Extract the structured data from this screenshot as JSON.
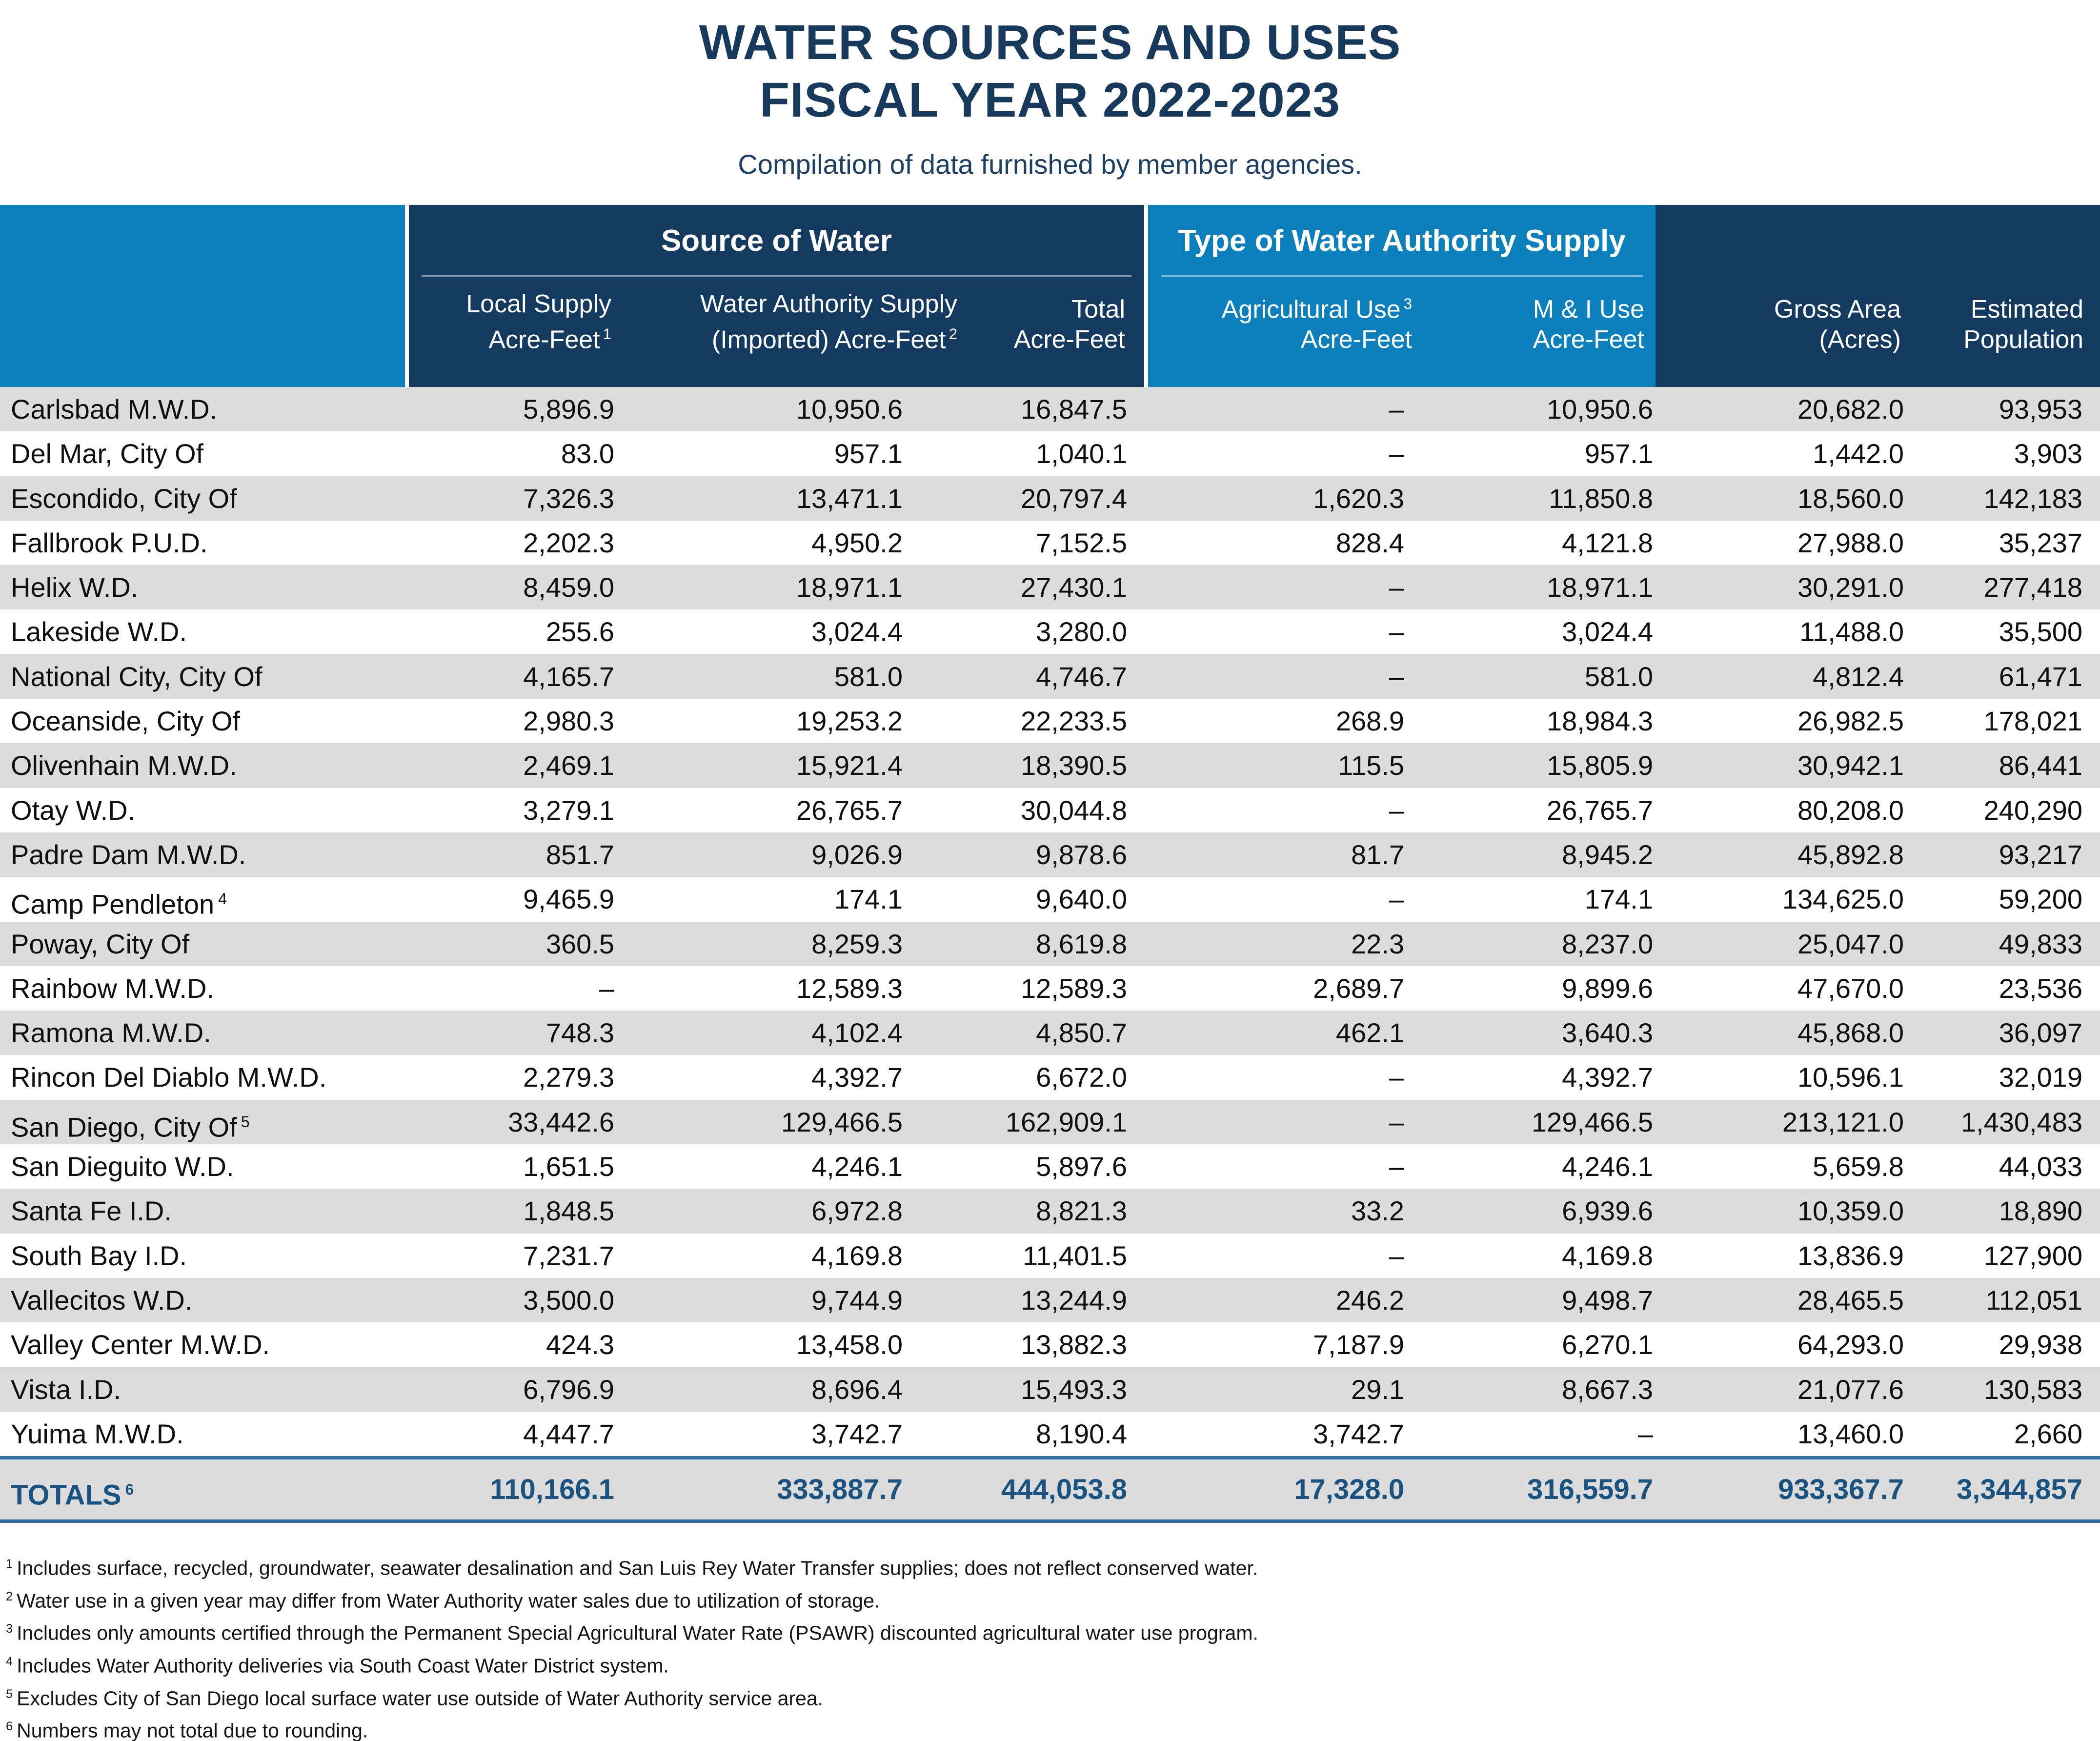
{
  "title": {
    "line1": "WATER SOURCES AND USES",
    "line2": "FISCAL YEAR 2022-2023",
    "subtitle": "Compilation of data furnished by member agencies."
  },
  "header": {
    "group_source": "Source of Water",
    "group_type": "Type of Water Authority Supply",
    "columns": [
      {
        "line1": "Local Supply",
        "line2": "Acre-Feet",
        "sup2": "1"
      },
      {
        "line1": "Water Authority Supply",
        "line2": "(Imported) Acre-Feet",
        "sup2": "2"
      },
      {
        "line1": "Total",
        "line2": "Acre-Feet"
      },
      {
        "line1": "Agricultural Use",
        "sup1": "3",
        "line2": "Acre-Feet"
      },
      {
        "line1": "M & I Use",
        "line2": "Acre-Feet"
      },
      {
        "line1": "Gross Area",
        "line2": "(Acres)"
      },
      {
        "line1": "Estimated",
        "line2": "Population"
      }
    ]
  },
  "table": {
    "rows": [
      {
        "name": "Carlsbad M.W.D.",
        "values": [
          "5,896.9",
          "10,950.6",
          "16,847.5",
          "–",
          "10,950.6",
          "20,682.0",
          "93,953"
        ]
      },
      {
        "name": "Del Mar, City Of",
        "values": [
          "83.0",
          "957.1",
          "1,040.1",
          "–",
          "957.1",
          "1,442.0",
          "3,903"
        ]
      },
      {
        "name": "Escondido, City Of",
        "values": [
          "7,326.3",
          "13,471.1",
          "20,797.4",
          "1,620.3",
          "11,850.8",
          "18,560.0",
          "142,183"
        ]
      },
      {
        "name": "Fallbrook P.U.D.",
        "values": [
          "2,202.3",
          "4,950.2",
          "7,152.5",
          "828.4",
          "4,121.8",
          "27,988.0",
          "35,237"
        ]
      },
      {
        "name": "Helix W.D.",
        "values": [
          "8,459.0",
          "18,971.1",
          "27,430.1",
          "–",
          "18,971.1",
          "30,291.0",
          "277,418"
        ]
      },
      {
        "name": "Lakeside W.D.",
        "values": [
          "255.6",
          "3,024.4",
          "3,280.0",
          "–",
          "3,024.4",
          "11,488.0",
          "35,500"
        ]
      },
      {
        "name": "National City, City Of",
        "values": [
          "4,165.7",
          "581.0",
          "4,746.7",
          "–",
          "581.0",
          "4,812.4",
          "61,471"
        ]
      },
      {
        "name": "Oceanside, City Of",
        "values": [
          "2,980.3",
          "19,253.2",
          "22,233.5",
          "268.9",
          "18,984.3",
          "26,982.5",
          "178,021"
        ]
      },
      {
        "name": "Olivenhain M.W.D.",
        "values": [
          "2,469.1",
          "15,921.4",
          "18,390.5",
          "115.5",
          "15,805.9",
          "30,942.1",
          "86,441"
        ]
      },
      {
        "name": "Otay W.D.",
        "values": [
          "3,279.1",
          "26,765.7",
          "30,044.8",
          "–",
          "26,765.7",
          "80,208.0",
          "240,290"
        ]
      },
      {
        "name": "Padre Dam M.W.D.",
        "values": [
          "851.7",
          "9,026.9",
          "9,878.6",
          "81.7",
          "8,945.2",
          "45,892.8",
          "93,217"
        ]
      },
      {
        "name": "Camp Pendleton",
        "sup": "4",
        "values": [
          "9,465.9",
          "174.1",
          "9,640.0",
          "–",
          "174.1",
          "134,625.0",
          "59,200"
        ]
      },
      {
        "name": "Poway, City Of",
        "values": [
          "360.5",
          "8,259.3",
          "8,619.8",
          "22.3",
          "8,237.0",
          "25,047.0",
          "49,833"
        ]
      },
      {
        "name": "Rainbow M.W.D.",
        "values": [
          "–",
          "12,589.3",
          "12,589.3",
          "2,689.7",
          "9,899.6",
          "47,670.0",
          "23,536"
        ]
      },
      {
        "name": "Ramona M.W.D.",
        "values": [
          "748.3",
          "4,102.4",
          "4,850.7",
          "462.1",
          "3,640.3",
          "45,868.0",
          "36,097"
        ]
      },
      {
        "name": "Rincon Del Diablo M.W.D.",
        "values": [
          "2,279.3",
          "4,392.7",
          "6,672.0",
          "–",
          "4,392.7",
          "10,596.1",
          "32,019"
        ]
      },
      {
        "name": "San Diego, City Of",
        "sup": "5",
        "values": [
          "33,442.6",
          "129,466.5",
          "162,909.1",
          "–",
          "129,466.5",
          "213,121.0",
          "1,430,483"
        ]
      },
      {
        "name": "San Dieguito W.D.",
        "values": [
          "1,651.5",
          "4,246.1",
          "5,897.6",
          "–",
          "4,246.1",
          "5,659.8",
          "44,033"
        ]
      },
      {
        "name": "Santa Fe I.D.",
        "values": [
          "1,848.5",
          "6,972.8",
          "8,821.3",
          "33.2",
          "6,939.6",
          "10,359.0",
          "18,890"
        ]
      },
      {
        "name": "South Bay I.D.",
        "values": [
          "7,231.7",
          "4,169.8",
          "11,401.5",
          "–",
          "4,169.8",
          "13,836.9",
          "127,900"
        ]
      },
      {
        "name": "Vallecitos W.D.",
        "values": [
          "3,500.0",
          "9,744.9",
          "13,244.9",
          "246.2",
          "9,498.7",
          "28,465.5",
          "112,051"
        ]
      },
      {
        "name": "Valley Center M.W.D.",
        "values": [
          "424.3",
          "13,458.0",
          "13,882.3",
          "7,187.9",
          "6,270.1",
          "64,293.0",
          "29,938"
        ]
      },
      {
        "name": "Vista I.D.",
        "values": [
          "6,796.9",
          "8,696.4",
          "15,493.3",
          "29.1",
          "8,667.3",
          "21,077.6",
          "130,583"
        ]
      },
      {
        "name": "Yuima M.W.D.",
        "values": [
          "4,447.7",
          "3,742.7",
          "8,190.4",
          "3,742.7",
          "–",
          "13,460.0",
          "2,660"
        ]
      }
    ],
    "totals": {
      "label": "TOTALS",
      "sup": "6",
      "values": [
        "110,166.1",
        "333,887.7",
        "444,053.8",
        "17,328.0",
        "316,559.7",
        "933,367.7",
        "3,344,857"
      ]
    }
  },
  "footnotes": [
    {
      "sup": "1",
      "text": "Includes surface, recycled, groundwater, seawater desalination and San Luis Rey Water Transfer supplies; does not reflect conserved water."
    },
    {
      "sup": "2",
      "text": "Water use in a given year may differ from Water Authority water sales due to utilization of storage."
    },
    {
      "sup": "3",
      "text": "Includes only amounts certified through the Permanent Special Agricultural Water Rate (PSAWR) discounted agricultural water use program."
    },
    {
      "sup": "4",
      "text": "Includes Water Authority deliveries via South Coast Water District system."
    },
    {
      "sup": "5",
      "text": "Excludes City of San Diego local surface water use outside of Water Authority service area."
    },
    {
      "sup": "6",
      "text": "Numbers may not total due to rounding."
    }
  ],
  "colors": {
    "navy": "#143A5F",
    "bright_blue": "#0B80BC",
    "row_stripe": "#DCDCDC",
    "totals_text": "#1B5380",
    "totals_rule": "#2E6DA3",
    "title_text": "#17395C"
  }
}
